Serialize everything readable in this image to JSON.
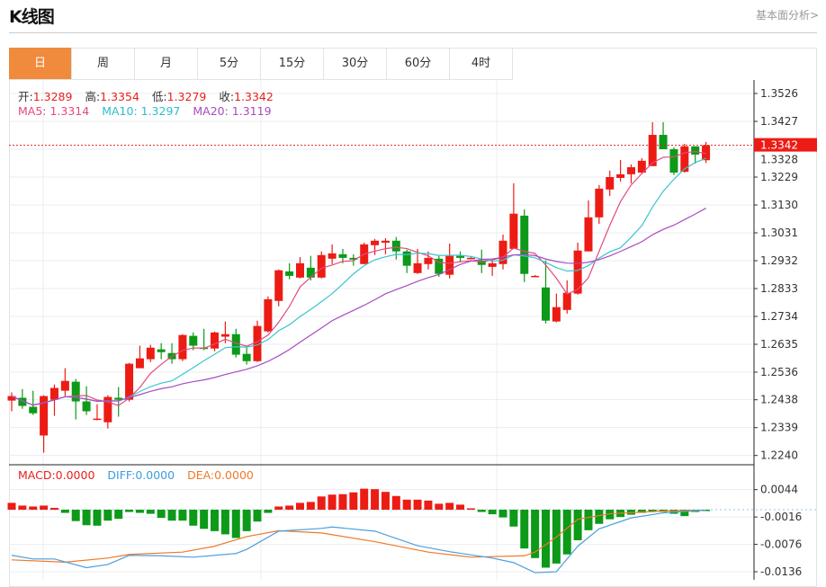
{
  "header": {
    "title": "K线图",
    "link": "基本面分析>"
  },
  "tabs": [
    {
      "label": "日",
      "active": true
    },
    {
      "label": "周"
    },
    {
      "label": "月"
    },
    {
      "label": "5分"
    },
    {
      "label": "15分"
    },
    {
      "label": "30分"
    },
    {
      "label": "60分"
    },
    {
      "label": "4时"
    }
  ],
  "info": {
    "open_label": "开:",
    "open": "1.3289",
    "high_label": "高:",
    "high": "1.3354",
    "low_label": "低:",
    "low": "1.3279",
    "close_label": "收:",
    "close": "1.3342",
    "ma5_label": "MA5: 1.3314",
    "ma10_label": "MA10: 1.3297",
    "ma20_label": "MA20: 1.3119"
  },
  "macd_info": {
    "macd": "MACD:0.0000",
    "diff": "DIFF:0.0000",
    "dea": "DEA:0.0000"
  },
  "colors": {
    "up": "#ec1c14",
    "down": "#0c9a18",
    "ma5": "#e4497c",
    "ma10": "#3cc3cf",
    "ma20": "#a94bbf",
    "diff": "#4a9fe0",
    "dea": "#f0792a",
    "accent": "#f08a3c"
  },
  "chart_data": [
    {
      "type": "candlestick",
      "ylim": [
        1.224,
        1.3526
      ],
      "y_ticks": [
        "1.3526",
        "1.3427",
        "1.3328",
        "1.3229",
        "1.3130",
        "1.3031",
        "1.2932",
        "1.2833",
        "1.2734",
        "1.2635",
        "1.2536",
        "1.2438",
        "1.2339",
        "1.2240"
      ],
      "last_price": "1.3342",
      "grid": true,
      "ma_periods": [
        5,
        10,
        20
      ],
      "ohlc": [
        [
          1.2435,
          1.2464,
          1.2397,
          1.2451
        ],
        [
          1.2445,
          1.2476,
          1.2406,
          1.2416
        ],
        [
          1.2413,
          1.247,
          1.2384,
          1.239
        ],
        [
          1.2311,
          1.2454,
          1.225,
          1.2451
        ],
        [
          1.2438,
          1.2492,
          1.2381,
          1.248
        ],
        [
          1.247,
          1.255,
          1.2451,
          1.2505
        ],
        [
          1.2502,
          1.2512,
          1.2368,
          1.2432
        ],
        [
          1.2432,
          1.2486,
          1.2384,
          1.2397
        ],
        [
          1.2368,
          1.2422,
          1.2365,
          1.2371
        ],
        [
          1.2358,
          1.2454,
          1.2336,
          1.2448
        ],
        [
          1.2445,
          1.2483,
          1.2378,
          1.2438
        ],
        [
          1.2438,
          1.2569,
          1.2432,
          1.2566
        ],
        [
          1.255,
          1.263,
          1.255,
          1.2585
        ],
        [
          1.2582,
          1.2633,
          1.2572,
          1.2623
        ],
        [
          1.2617,
          1.2639,
          1.2582,
          1.2607
        ],
        [
          1.2604,
          1.2639,
          1.2566,
          1.2582
        ],
        [
          1.2582,
          1.2671,
          1.2575,
          1.2668
        ],
        [
          1.2665,
          1.2677,
          1.2614,
          1.263
        ],
        [
          1.2623,
          1.269,
          1.2614,
          1.262
        ],
        [
          1.262,
          1.268,
          1.261,
          1.2677
        ],
        [
          1.2662,
          1.2716,
          1.2639,
          1.2671
        ],
        [
          1.2671,
          1.269,
          1.2588,
          1.2598
        ],
        [
          1.2601,
          1.2623,
          1.2563,
          1.2575
        ],
        [
          1.2575,
          1.2719,
          1.2572,
          1.27
        ],
        [
          1.2681,
          1.2805,
          1.2677,
          1.2795
        ],
        [
          1.2789,
          1.2901,
          1.277,
          1.2898
        ],
        [
          1.2894,
          1.2923,
          1.2866,
          1.2878
        ],
        [
          1.2872,
          1.2945,
          1.2869,
          1.2923
        ],
        [
          1.2907,
          1.2949,
          1.2862,
          1.2872
        ],
        [
          1.2872,
          1.2965,
          1.2869,
          1.2952
        ],
        [
          1.2939,
          1.299,
          1.292,
          1.2958
        ],
        [
          1.2955,
          1.2974,
          1.2923,
          1.2942
        ],
        [
          1.2942,
          1.2955,
          1.2914,
          1.2936
        ],
        [
          1.292,
          1.2996,
          1.292,
          1.299
        ],
        [
          1.2987,
          1.3009,
          1.2952,
          1.3003
        ],
        [
          1.2996,
          1.3012,
          1.2955,
          1.3003
        ],
        [
          1.3003,
          1.3016,
          1.2936,
          1.2965
        ],
        [
          1.2965,
          1.2971,
          1.2888,
          1.2914
        ],
        [
          1.2888,
          1.2974,
          1.2885,
          1.2923
        ],
        [
          1.292,
          1.2965,
          1.2901,
          1.2942
        ],
        [
          1.2939,
          1.2952,
          1.2875,
          1.2885
        ],
        [
          1.2882,
          1.2993,
          1.2869,
          1.2949
        ],
        [
          1.2949,
          1.2965,
          1.2926,
          1.2942
        ],
        [
          1.2942,
          1.2945,
          1.2939,
          1.2942
        ],
        [
          1.2933,
          1.2971,
          1.2888,
          1.2917
        ],
        [
          1.291,
          1.2933,
          1.2878,
          1.2923
        ],
        [
          1.292,
          1.3025,
          1.2901,
          1.3003
        ],
        [
          1.2974,
          1.3207,
          1.2974,
          1.3099
        ],
        [
          1.3092,
          1.3114,
          1.2856,
          1.2885
        ],
        [
          1.2878,
          1.2881,
          1.2875,
          1.2878
        ],
        [
          1.2837,
          1.2933,
          1.2709,
          1.2719
        ],
        [
          1.2716,
          1.2815,
          1.2713,
          1.2767
        ],
        [
          1.2757,
          1.2862,
          1.2744,
          1.2818
        ],
        [
          1.2815,
          1.2996,
          1.2811,
          1.2968
        ],
        [
          1.2965,
          1.3146,
          1.2965,
          1.3086
        ],
        [
          1.3086,
          1.3201,
          1.3063,
          1.3188
        ],
        [
          1.3185,
          1.3252,
          1.3162,
          1.3229
        ],
        [
          1.3226,
          1.329,
          1.3213,
          1.3239
        ],
        [
          1.3239,
          1.3274,
          1.3207,
          1.3264
        ],
        [
          1.3245,
          1.3296,
          1.3242,
          1.3287
        ],
        [
          1.3268,
          1.3424,
          1.3268,
          1.3379
        ],
        [
          1.3379,
          1.3424,
          1.3328,
          1.3328
        ],
        [
          1.3328,
          1.3335,
          1.3236,
          1.3245
        ],
        [
          1.3248,
          1.3347,
          1.3245,
          1.3338
        ],
        [
          1.3338,
          1.3338,
          1.3277,
          1.3309
        ],
        [
          1.3289,
          1.3354,
          1.3279,
          1.3342
        ]
      ]
    },
    {
      "type": "macd",
      "ylim": [
        -0.0136,
        0.0044
      ],
      "y_ticks": [
        "0.0044",
        "-0.0016",
        "-0.0076",
        "-0.0136"
      ],
      "histogram": [
        0.0015,
        0.0009,
        0.0007,
        0.0009,
        0.0004,
        -0.0007,
        -0.0025,
        -0.0034,
        -0.0035,
        -0.0024,
        -0.002,
        -0.0005,
        -0.0007,
        -0.0009,
        -0.0018,
        -0.0024,
        -0.0024,
        -0.0035,
        -0.0042,
        -0.0047,
        -0.0054,
        -0.0062,
        -0.0047,
        -0.0026,
        -0.0007,
        0.0007,
        0.0009,
        0.0015,
        0.0017,
        0.0029,
        0.0033,
        0.0034,
        0.0038,
        0.0046,
        0.0045,
        0.0039,
        0.003,
        0.0022,
        0.0022,
        0.002,
        0.0013,
        0.0015,
        0.0011,
        0.0003,
        -0.0005,
        -0.001,
        -0.0017,
        -0.0037,
        -0.0085,
        -0.0106,
        -0.0127,
        -0.0118,
        -0.0098,
        -0.0067,
        -0.0045,
        -0.0031,
        -0.0021,
        -0.0016,
        -0.0011,
        -0.0007,
        -0.0005,
        -0.0005,
        -0.0009,
        -0.0014,
        -0.0005,
        -0.0003
      ],
      "diff": [
        [
          1,
          -0.01
        ],
        [
          3,
          -0.0108
        ],
        [
          5,
          -0.0108
        ],
        [
          8,
          -0.0127
        ],
        [
          10,
          -0.012
        ],
        [
          12,
          -0.01
        ],
        [
          15,
          -0.0101
        ],
        [
          18,
          -0.0104
        ],
        [
          22,
          -0.0096
        ],
        [
          23,
          -0.0087
        ],
        [
          26,
          -0.0047
        ],
        [
          30,
          -0.0041
        ],
        [
          31,
          -0.0038
        ],
        [
          35,
          -0.0047
        ],
        [
          39,
          -0.0079
        ],
        [
          42,
          -0.0092
        ],
        [
          46,
          -0.0106
        ],
        [
          48,
          -0.0116
        ],
        [
          50,
          -0.0138
        ],
        [
          52,
          -0.0136
        ],
        [
          54,
          -0.008
        ],
        [
          56,
          -0.0042
        ],
        [
          59,
          -0.0018
        ],
        [
          62,
          -0.0007
        ],
        [
          66,
          -0.0001
        ]
      ],
      "dea": [
        [
          1,
          -0.011
        ],
        [
          6,
          -0.0115
        ],
        [
          10,
          -0.0106
        ],
        [
          12,
          -0.0098
        ],
        [
          17,
          -0.0093
        ],
        [
          20,
          -0.008
        ],
        [
          23,
          -0.0059
        ],
        [
          26,
          -0.0046
        ],
        [
          30,
          -0.0051
        ],
        [
          35,
          -0.007
        ],
        [
          40,
          -0.0093
        ],
        [
          44,
          -0.0104
        ],
        [
          49,
          -0.0101
        ],
        [
          50,
          -0.0093
        ],
        [
          52,
          -0.006
        ],
        [
          54,
          -0.0021
        ],
        [
          57,
          -0.0009
        ],
        [
          62,
          -0.0003
        ],
        [
          66,
          -0.0001
        ]
      ]
    }
  ]
}
